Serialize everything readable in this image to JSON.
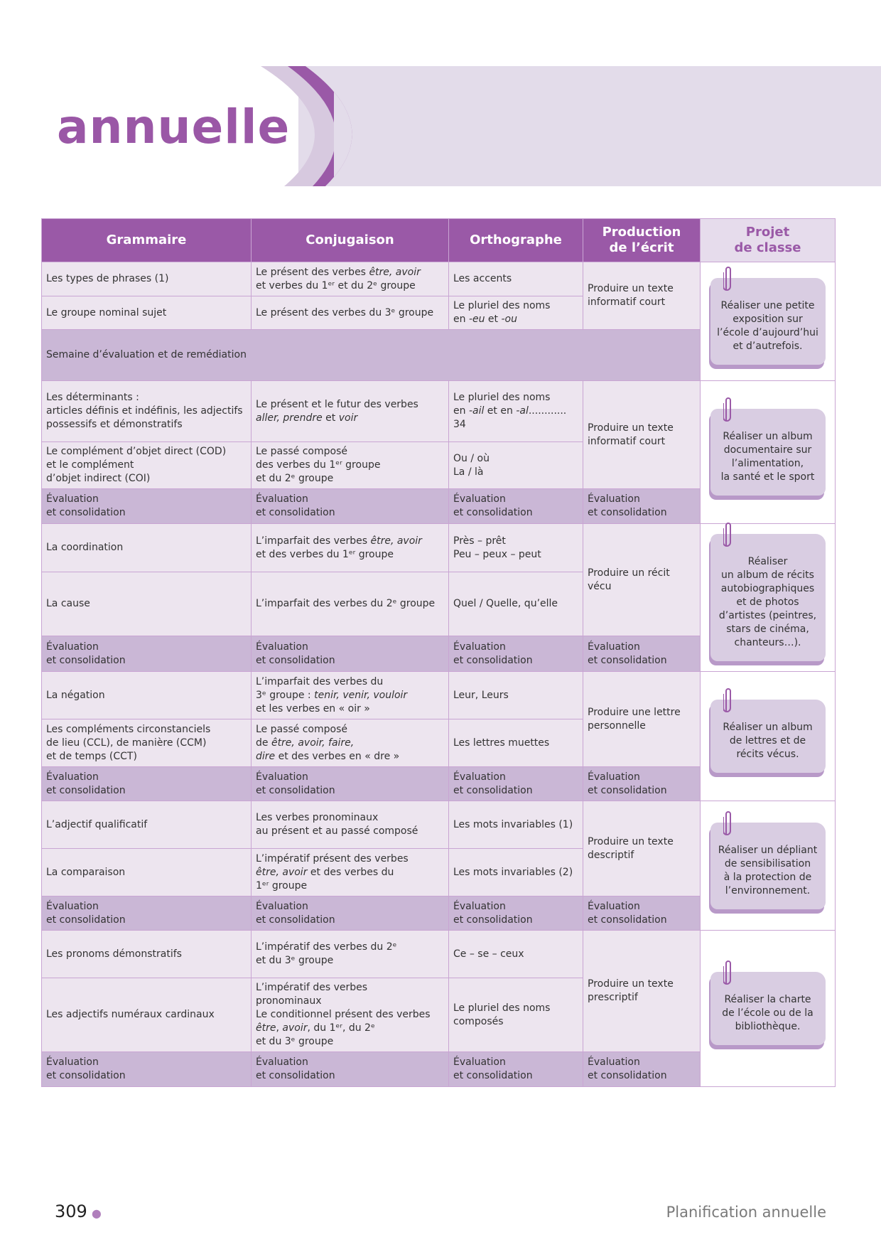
{
  "title": "annuelle",
  "colors": {
    "accent": "#9a59a7",
    "band": "#e3dcea",
    "cell": "#ede5ef",
    "eval": "#cab7d6"
  },
  "table": {
    "headers": [
      "Grammaire",
      "Conjugaison",
      "Orthographe",
      "Production\nde l’écrit",
      "Projet\nde classe"
    ],
    "rows": [
      {
        "g": "Les types de phrases (1)",
        "c": "Le présent des verbes _être, avoir_\net verbes du 1ᵉʳ et du 2ᵉ groupe",
        "o": "Les accents",
        "p": "Produire un texte\ninformatif court",
        "proj": "Réaliser une petite\nexposition sur\nl’école d’aujourd’hui\net d’autrefois."
      },
      {
        "g": "Le groupe nominal sujet",
        "c": "Le présent des verbes du 3ᵉ groupe",
        "o": "Le pluriel des noms\nen _-eu_ et _-ou_"
      },
      {
        "band": "Semaine d’évaluation et de remédiation"
      },
      {
        "g": "Les déterminants :\narticles définis et indéfinis, les adjectifs\npossessifs et démonstratifs",
        "c": "Le présent et le futur des verbes\n_aller, prendre_ et _voir_",
        "o": "Le pluriel des noms\nen _-ail_ et en _-al_............ 34",
        "p": "Produire un texte\ninformatif court",
        "proj": "Réaliser un album\ndocumentaire sur\nl’alimentation,\nla santé et le sport"
      },
      {
        "g": "Le complément d’objet direct (COD)\net le complément\nd’objet indirect (COI)",
        "c": "Le passé composé\ndes verbes du 1ᵉʳ groupe\net du 2ᵉ groupe",
        "o": "Ou / où\nLa / là"
      },
      {
        "eval": true,
        "g": "Évaluation\net consolidation",
        "c": "Évaluation\net consolidation",
        "o": "Évaluation\net consolidation",
        "p": "Évaluation\net consolidation"
      },
      {
        "g": "La coordination",
        "c": "L’imparfait des verbes _être, avoir_\net des verbes du 1ᵉʳ groupe",
        "o": "Près – prêt\nPeu – peux – peut",
        "p": "Produire un récit vécu",
        "proj": "Réaliser\nun album de récits\nautobiographiques\net de photos\nd’artistes (peintres,\nstars de cinéma,\nchanteurs…)."
      },
      {
        "g": "La cause",
        "c": "L’imparfait des verbes du 2ᵉ groupe",
        "o": "Quel / Quelle, qu’elle"
      },
      {
        "eval": true,
        "g": "Évaluation\net consolidation",
        "c": "Évaluation\net consolidation",
        "o": "Évaluation\net consolidation",
        "p": "Évaluation\net consolidation"
      },
      {
        "g": "La négation",
        "c": "L’imparfait des verbes du\n3ᵉ groupe : _tenir, venir, vouloir_\net les verbes en « oir »",
        "o": "Leur, Leurs",
        "p": "Produire une lettre\npersonnelle",
        "proj": "Réaliser un album\nde lettres et de\nrécits vécus."
      },
      {
        "g": "Les compléments circonstanciels\nde lieu (CCL), de manière (CCM)\net de temps (CCT)",
        "c": "Le passé composé\nde _être, avoir, faire,_\n_dire_ et des verbes en « dre »",
        "o": "Les lettres muettes"
      },
      {
        "eval": true,
        "g": "Évaluation\net consolidation",
        "c": "Évaluation\net consolidation",
        "o": "Évaluation\net consolidation",
        "p": "Évaluation\net consolidation"
      },
      {
        "g": "L’adjectif qualificatif",
        "c": "Les verbes pronominaux\nau présent et au passé composé",
        "o": "Les mots invariables (1)",
        "p": "Produire un texte\ndescriptif",
        "proj": "Réaliser un dépliant\nde sensibilisation\nà la protection de\nl’environnement."
      },
      {
        "g": "La comparaison",
        "c": "L’impératif présent des verbes\n_être, avoir_ et des verbes du\n1ᵉʳ groupe",
        "o": "Les mots invariables (2)"
      },
      {
        "eval": true,
        "g": "Évaluation\net consolidation",
        "c": "Évaluation\net consolidation",
        "o": "Évaluation\net consolidation",
        "p": "Évaluation\net consolidation"
      },
      {
        "g": "Les pronoms démonstratifs",
        "c": "L’impératif des verbes du 2ᵉ\net du 3ᵉ groupe",
        "o": "Ce – se – ceux",
        "p": "Produire un texte\nprescriptif",
        "proj": "Réaliser la charte\nde l’école ou de la\nbibliothèque."
      },
      {
        "g": "Les adjectifs numéraux cardinaux",
        "c": "L’impératif des verbes\npronominaux\nLe conditionnel présent des verbes\n_être_, _avoir_, du 1ᵉʳ, du 2ᵉ\net du 3ᵉ groupe",
        "o": "Le pluriel des noms\ncomposés"
      },
      {
        "eval": true,
        "g": "Évaluation\net consolidation",
        "c": "Évaluation\net consolidation",
        "o": "Évaluation\net consolidation",
        "p": "Évaluation\net consolidation"
      }
    ]
  },
  "footer": {
    "page_number": "309",
    "section": "Planification annuelle"
  }
}
